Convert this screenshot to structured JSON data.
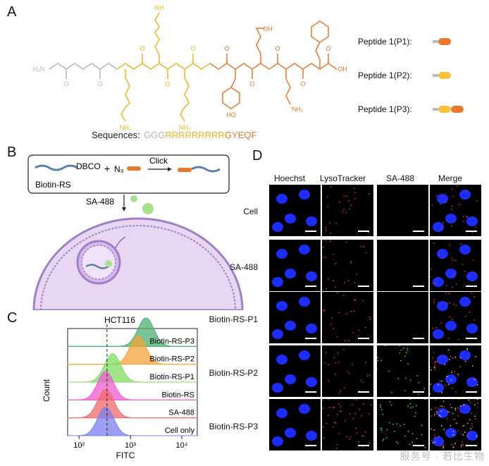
{
  "panels": {
    "A": "A",
    "B": "B",
    "C": "C",
    "D": "D"
  },
  "panelA": {
    "chem": {
      "nh2_left": "H₂N",
      "nh": "NH",
      "h2n": "H₂N",
      "n": "N",
      "h": "H",
      "o": "O",
      "oh": "OH",
      "nh2": "NH₂",
      "ho": "HO",
      "n_labels": [
        "N",
        "N",
        "N",
        "N",
        "N",
        "N",
        "N",
        "N"
      ],
      "h_labels": [
        "H",
        "H",
        "H",
        "H",
        "H",
        "H",
        "H",
        "H"
      ]
    },
    "sequence_label": "Sequences:",
    "sequence_parts": [
      {
        "text": "GGG",
        "color": "#b5b5b5"
      },
      {
        "text": "RRRRRRRRR",
        "color": "#f0b323"
      },
      {
        "text": "GYEQF",
        "color": "#e8782f"
      }
    ],
    "legend": [
      {
        "label": "Peptide 1(P1):",
        "colors": [
          "#e8782f"
        ]
      },
      {
        "label": "Peptide 1(P2):",
        "colors": [
          "#f5c242"
        ]
      },
      {
        "label": "Peptide 1(P3):",
        "colors": [
          "#f5c242",
          "#e8782f"
        ]
      }
    ]
  },
  "panelB": {
    "dbco": "DBCO",
    "biotin_rs": "Biotin-RS",
    "plus": "+",
    "n3": "N₃",
    "click": "Click",
    "sa488": "SA-488"
  },
  "panelC": {
    "title": "HCT116",
    "chart_data": {
      "type": "histogram",
      "title": "HCT116",
      "xlabel": "FITC",
      "ylabel": "Count",
      "xscale": "log",
      "xlim": [
        60,
        20000
      ],
      "xticks": [
        "10²",
        "10³",
        "10⁴"
      ],
      "gate_line_x": 350,
      "series": [
        {
          "name": "Biotin-RS-P3",
          "color": "#4caf72",
          "peak": 2000
        },
        {
          "name": "Biotin-RS-P2",
          "color": "#f2a33a",
          "peak": 1400
        },
        {
          "name": "Biotin-RS-P1",
          "color": "#7fdc62",
          "peak": 450
        },
        {
          "name": "Biotin-RS",
          "color": "#ee5bd0",
          "peak": 330
        },
        {
          "name": "SA-488",
          "color": "#f06a6a",
          "peak": 330
        },
        {
          "name": "Cell only",
          "color": "#7b7ff0",
          "peak": 330
        }
      ]
    }
  },
  "panelD": {
    "columns": [
      "Hoechst",
      "LysoTracker",
      "SA-488",
      "Merge"
    ],
    "rows": [
      "Cell",
      "SA-488",
      "Biotin-RS-P1",
      "Biotin-RS-P2",
      "Biotin-RS-P3"
    ]
  },
  "watermark": "服务号 · 若比生物"
}
